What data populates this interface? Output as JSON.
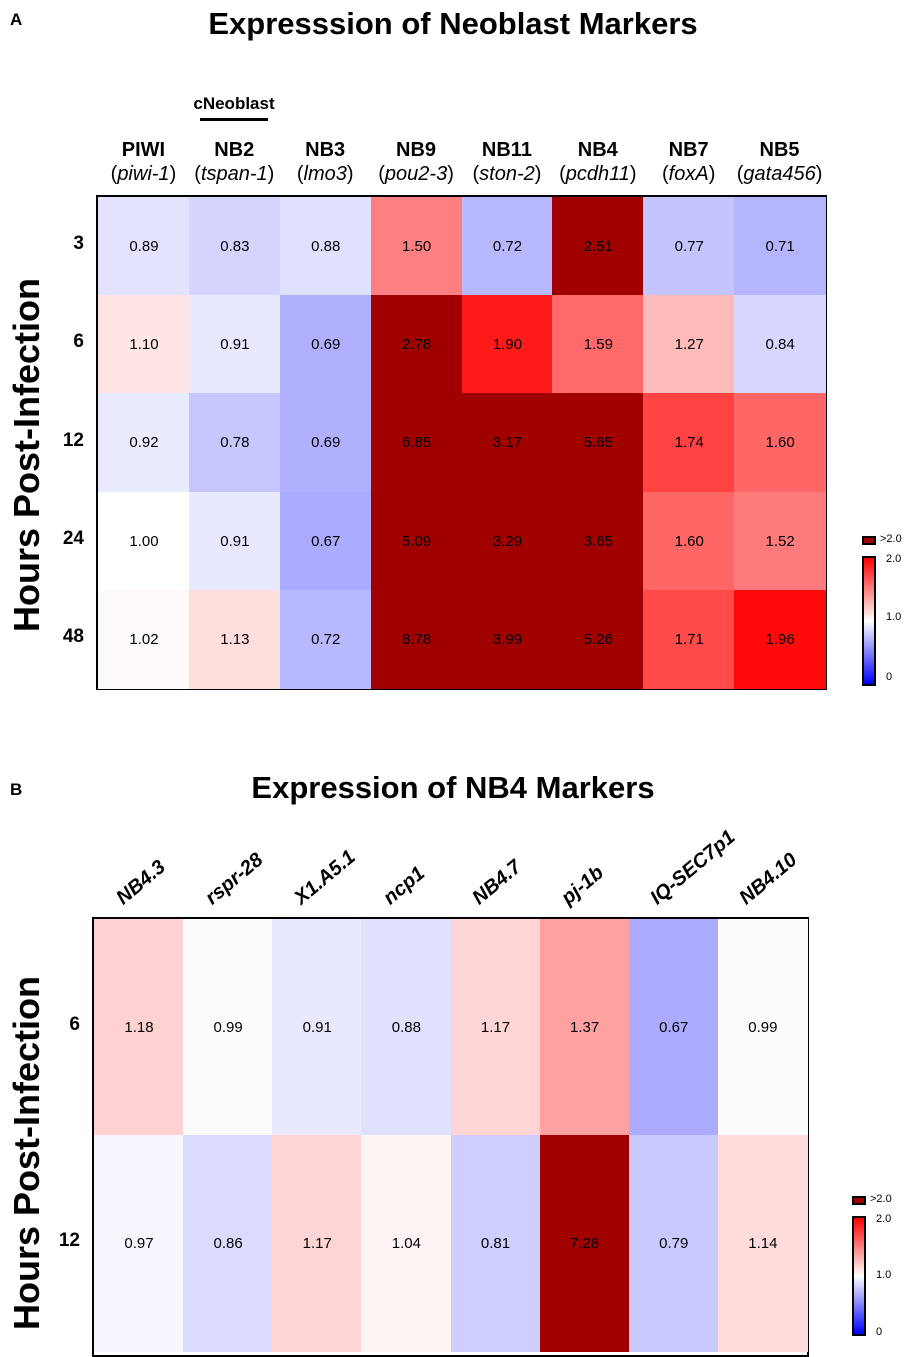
{
  "panelA": {
    "letter": "A",
    "title": "Expresssion of Neoblast Markers",
    "ylabel": "Hours Post-Infection",
    "group_label": "cNeoblast",
    "legend": {
      "over": ">2.0",
      "ticks": [
        "2.0",
        "1.0",
        "0"
      ]
    }
  },
  "panelB": {
    "letter": "B",
    "title": "Expression of NB4 Markers",
    "ylabel": "Hours Post-Infection",
    "legend": {
      "over": ">2.0",
      "ticks": [
        "2.0",
        "1.0",
        "0"
      ]
    }
  },
  "chart_data": [
    {
      "type": "heatmap",
      "title": "Expresssion of Neoblast Markers",
      "ylabel": "Hours Post-Infection",
      "columns": [
        {
          "name": "PIWI",
          "gene": "piwi-1"
        },
        {
          "name": "NB2",
          "gene": "tspan-1"
        },
        {
          "name": "NB3",
          "gene": "lmo3"
        },
        {
          "name": "NB9",
          "gene": "pou2-3"
        },
        {
          "name": "NB11",
          "gene": "ston-2"
        },
        {
          "name": "NB4",
          "gene": "pcdh11"
        },
        {
          "name": "NB7",
          "gene": "foxA"
        },
        {
          "name": "NB5",
          "gene": "gata456"
        }
      ],
      "rows": [
        "3",
        "6",
        "12",
        "24",
        "48"
      ],
      "values": [
        [
          0.89,
          0.83,
          0.88,
          1.5,
          0.72,
          2.51,
          0.77,
          0.71
        ],
        [
          1.1,
          0.91,
          0.69,
          2.78,
          1.9,
          1.59,
          1.27,
          0.84
        ],
        [
          0.92,
          0.78,
          0.69,
          6.85,
          3.17,
          5.65,
          1.74,
          1.6
        ],
        [
          1.0,
          0.91,
          0.67,
          5.09,
          3.29,
          3.65,
          1.6,
          1.52
        ],
        [
          1.02,
          1.13,
          0.72,
          8.78,
          3.99,
          5.26,
          1.71,
          1.96
        ]
      ],
      "color_scale": {
        "min": 0,
        "mid": 1.0,
        "max": 2.0,
        "low_color": "#0000ff",
        "mid_color": "#ffffff",
        "high_color": "#ff0000",
        "over_color": "#a00000"
      }
    },
    {
      "type": "heatmap",
      "title": "Expression of NB4 Markers",
      "ylabel": "Hours Post-Infection",
      "columns": [
        "NB4.3",
        "rspr-28",
        "X1.A5.1",
        "ncp1",
        "NB4.7",
        "pj-1b",
        "IQ-SEC7p1",
        "NB4.10"
      ],
      "rows": [
        "6",
        "12"
      ],
      "values": [
        [
          1.18,
          0.99,
          0.91,
          0.88,
          1.17,
          1.37,
          0.67,
          0.99
        ],
        [
          0.97,
          0.86,
          1.17,
          1.04,
          0.81,
          7.28,
          0.79,
          1.14
        ]
      ],
      "color_scale": {
        "min": 0,
        "mid": 1.0,
        "max": 2.0,
        "low_color": "#0000ff",
        "mid_color": "#ffffff",
        "high_color": "#ff0000",
        "over_color": "#a00000"
      }
    }
  ]
}
